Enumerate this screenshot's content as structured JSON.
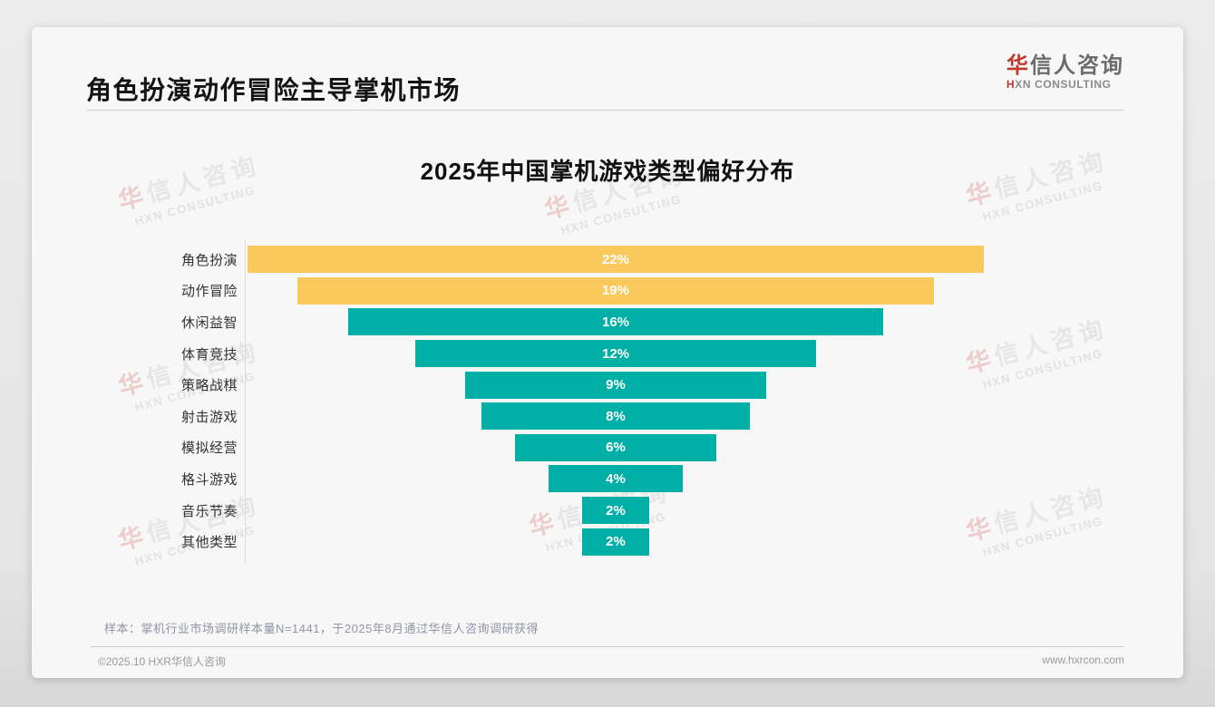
{
  "header": {
    "title": "角色扮演动作冒险主导掌机市场"
  },
  "logo": {
    "cn_accent": "华",
    "cn_rest": "信人咨询",
    "en_accent": "H",
    "en_rest": "XN CONSULTING"
  },
  "watermark": {
    "cn": "华信人咨询",
    "en": "HXN CONSULTING"
  },
  "chart_data": {
    "type": "bar",
    "variant": "horizontal-centered-funnel",
    "title": "2025年中国掌机游戏类型偏好分布",
    "categories": [
      "角色扮演",
      "动作冒险",
      "休闲益智",
      "体育竞技",
      "策略战棋",
      "射击游戏",
      "模拟经营",
      "格斗游戏",
      "音乐节奏",
      "其他类型"
    ],
    "values": [
      22,
      19,
      16,
      12,
      9,
      8,
      6,
      4,
      2,
      2
    ],
    "value_labels": [
      "22%",
      "19%",
      "16%",
      "12%",
      "9%",
      "8%",
      "6%",
      "4%",
      "2%",
      "2%"
    ],
    "unit": "%",
    "max_value": 22,
    "highlight_count": 2,
    "colors": {
      "highlight": "#F9C95C",
      "default": "#00AFA5",
      "value_label": "#FFFFFF"
    },
    "xlabel": "",
    "ylabel": "",
    "axis_ticks_visible": false,
    "grid": false,
    "legend": false
  },
  "footnote": "样本：掌机行业市场调研样本量N=1441，于2025年8月通过华信人咨询调研获得",
  "footer": {
    "copyright": "©2025.10 HXR华信人咨询",
    "website": "www.hxrcon.com"
  },
  "colors": {
    "brand_red": "#C0392B",
    "card_bg": "#F7F7F8",
    "page_bg": "#E6E6E6",
    "divider": "#D4D4D4"
  }
}
